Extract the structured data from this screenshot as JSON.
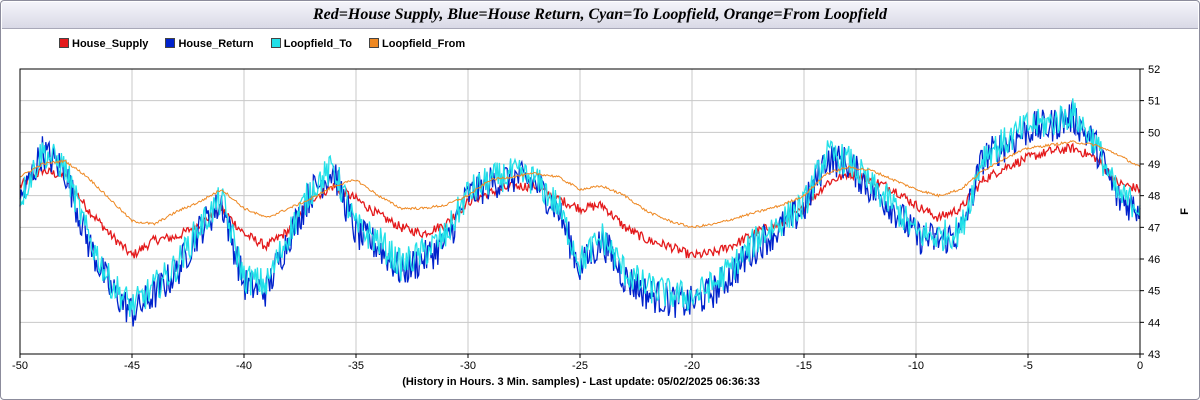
{
  "title": "Red=House Supply, Blue=House Return, Cyan=To Loopfield, Orange=From Loopfield",
  "x_caption": "(History in Hours. 3 Min. samples) - Last update: 05/02/2025 06:36:33",
  "chart_data": {
    "type": "line",
    "title": "Red=House Supply, Blue=House Return, Cyan=To Loopfield, Orange=From Loopfield",
    "xlabel": "(History in Hours. 3 Min. samples) - Last update: 05/02/2025 06:36:33",
    "ylabel": "F",
    "xlim": [
      -50,
      0
    ],
    "ylim": [
      43,
      52
    ],
    "x_ticks": [
      -50,
      -45,
      -40,
      -35,
      -30,
      -25,
      -20,
      -15,
      -10,
      -5,
      0
    ],
    "y_ticks": [
      43,
      44,
      45,
      46,
      47,
      48,
      49,
      50,
      51,
      52
    ],
    "grid": true,
    "legend_position": "top-left",
    "series": [
      {
        "name": "House_Supply",
        "color": "#e41a1c",
        "x": [
          -50,
          -49,
          -48,
          -47,
          -46,
          -45,
          -44,
          -43,
          -42,
          -41,
          -40,
          -39,
          -38,
          -37,
          -36,
          -35,
          -34,
          -33,
          -32,
          -31,
          -30,
          -29,
          -28,
          -27,
          -26,
          -25,
          -24,
          -23,
          -22,
          -21,
          -20,
          -19,
          -18,
          -17,
          -16,
          -15,
          -14,
          -13,
          -12,
          -11,
          -10,
          -9,
          -8,
          -7,
          -6,
          -5,
          -4,
          -3,
          -2,
          -1,
          0
        ],
        "y": [
          48.3,
          48.8,
          48.6,
          47.6,
          46.8,
          46.1,
          46.6,
          46.7,
          47.1,
          47.6,
          46.8,
          46.4,
          46.9,
          47.9,
          48.3,
          47.9,
          47.4,
          47.0,
          46.8,
          47.1,
          47.8,
          48.1,
          48.3,
          48.3,
          47.9,
          47.6,
          47.7,
          47.0,
          46.6,
          46.4,
          46.1,
          46.2,
          46.5,
          46.9,
          47.1,
          47.6,
          48.4,
          48.7,
          48.5,
          48.2,
          47.7,
          47.3,
          47.6,
          48.5,
          48.9,
          49.2,
          49.4,
          49.5,
          49.2,
          48.4,
          48.2
        ]
      },
      {
        "name": "House_Return",
        "color": "#0022cc",
        "x": [
          -50,
          -49,
          -48,
          -47,
          -46,
          -45,
          -44,
          -43,
          -42,
          -41,
          -40,
          -39,
          -38,
          -37,
          -36,
          -35,
          -34,
          -33,
          -32,
          -31,
          -30,
          -29,
          -28,
          -27,
          -26,
          -25,
          -24,
          -23,
          -22,
          -21,
          -20,
          -19,
          -18,
          -17,
          -16,
          -15,
          -14,
          -13,
          -12,
          -11,
          -10,
          -9,
          -8,
          -7,
          -6,
          -5,
          -4,
          -3,
          -2,
          -1,
          0
        ],
        "y": [
          47.8,
          49.4,
          48.8,
          46.6,
          45.1,
          44.3,
          44.9,
          45.6,
          46.9,
          47.8,
          45.2,
          45.0,
          46.7,
          48.1,
          48.8,
          46.8,
          46.4,
          45.6,
          46.0,
          46.5,
          48.0,
          48.4,
          48.6,
          48.4,
          47.6,
          45.7,
          46.6,
          45.4,
          44.9,
          44.7,
          44.6,
          45.0,
          45.7,
          46.5,
          47.0,
          47.6,
          49.2,
          49.0,
          48.2,
          47.6,
          46.7,
          46.6,
          46.8,
          49.2,
          49.6,
          50.1,
          50.2,
          50.5,
          49.6,
          47.9,
          47.6
        ]
      },
      {
        "name": "Loopfield_To",
        "color": "#22e0e8",
        "x": [
          -50,
          -49,
          -48,
          -47,
          -46,
          -45,
          -44,
          -43,
          -42,
          -41,
          -40,
          -39,
          -38,
          -37,
          -36,
          -35,
          -34,
          -33,
          -32,
          -31,
          -30,
          -29,
          -28,
          -27,
          -26,
          -25,
          -24,
          -23,
          -22,
          -21,
          -20,
          -19,
          -18,
          -17,
          -16,
          -15,
          -14,
          -13,
          -12,
          -11,
          -10,
          -9,
          -8,
          -7,
          -6,
          -5,
          -4,
          -3,
          -2,
          -1,
          0
        ],
        "y": [
          47.9,
          49.4,
          48.9,
          46.8,
          45.3,
          44.5,
          45.1,
          45.8,
          47.0,
          47.9,
          45.4,
          45.2,
          46.8,
          48.2,
          48.9,
          47.0,
          46.6,
          45.8,
          46.2,
          46.7,
          48.1,
          48.5,
          48.7,
          48.5,
          47.7,
          45.9,
          46.7,
          45.6,
          45.1,
          44.9,
          44.8,
          45.2,
          45.9,
          46.7,
          47.2,
          47.7,
          49.3,
          49.1,
          48.3,
          47.7,
          46.8,
          46.7,
          46.9,
          49.3,
          49.7,
          50.2,
          50.3,
          50.6,
          49.7,
          48.0,
          47.7
        ]
      },
      {
        "name": "Loopfield_From",
        "color": "#ee8822",
        "x": [
          -50,
          -49,
          -48,
          -47,
          -46,
          -45,
          -44,
          -43,
          -42,
          -41,
          -40,
          -39,
          -38,
          -37,
          -36,
          -35,
          -34,
          -33,
          -32,
          -31,
          -30,
          -29,
          -28,
          -27,
          -26,
          -25,
          -24,
          -23,
          -22,
          -21,
          -20,
          -19,
          -18,
          -17,
          -16,
          -15,
          -14,
          -13,
          -12,
          -11,
          -10,
          -9,
          -8,
          -7,
          -6,
          -5,
          -4,
          -3,
          -2,
          -1,
          0
        ],
        "y": [
          48.6,
          49.0,
          49.1,
          48.6,
          47.9,
          47.2,
          47.1,
          47.5,
          47.8,
          48.2,
          47.6,
          47.3,
          47.6,
          47.9,
          48.3,
          48.5,
          48.0,
          47.6,
          47.6,
          47.7,
          48.0,
          48.5,
          48.6,
          48.7,
          48.6,
          48.2,
          48.3,
          48.0,
          47.5,
          47.2,
          47.0,
          47.1,
          47.3,
          47.5,
          47.7,
          48.0,
          48.7,
          48.9,
          48.8,
          48.5,
          48.2,
          48.0,
          48.2,
          48.8,
          49.2,
          49.5,
          49.6,
          49.7,
          49.6,
          49.3,
          48.9
        ]
      }
    ]
  }
}
